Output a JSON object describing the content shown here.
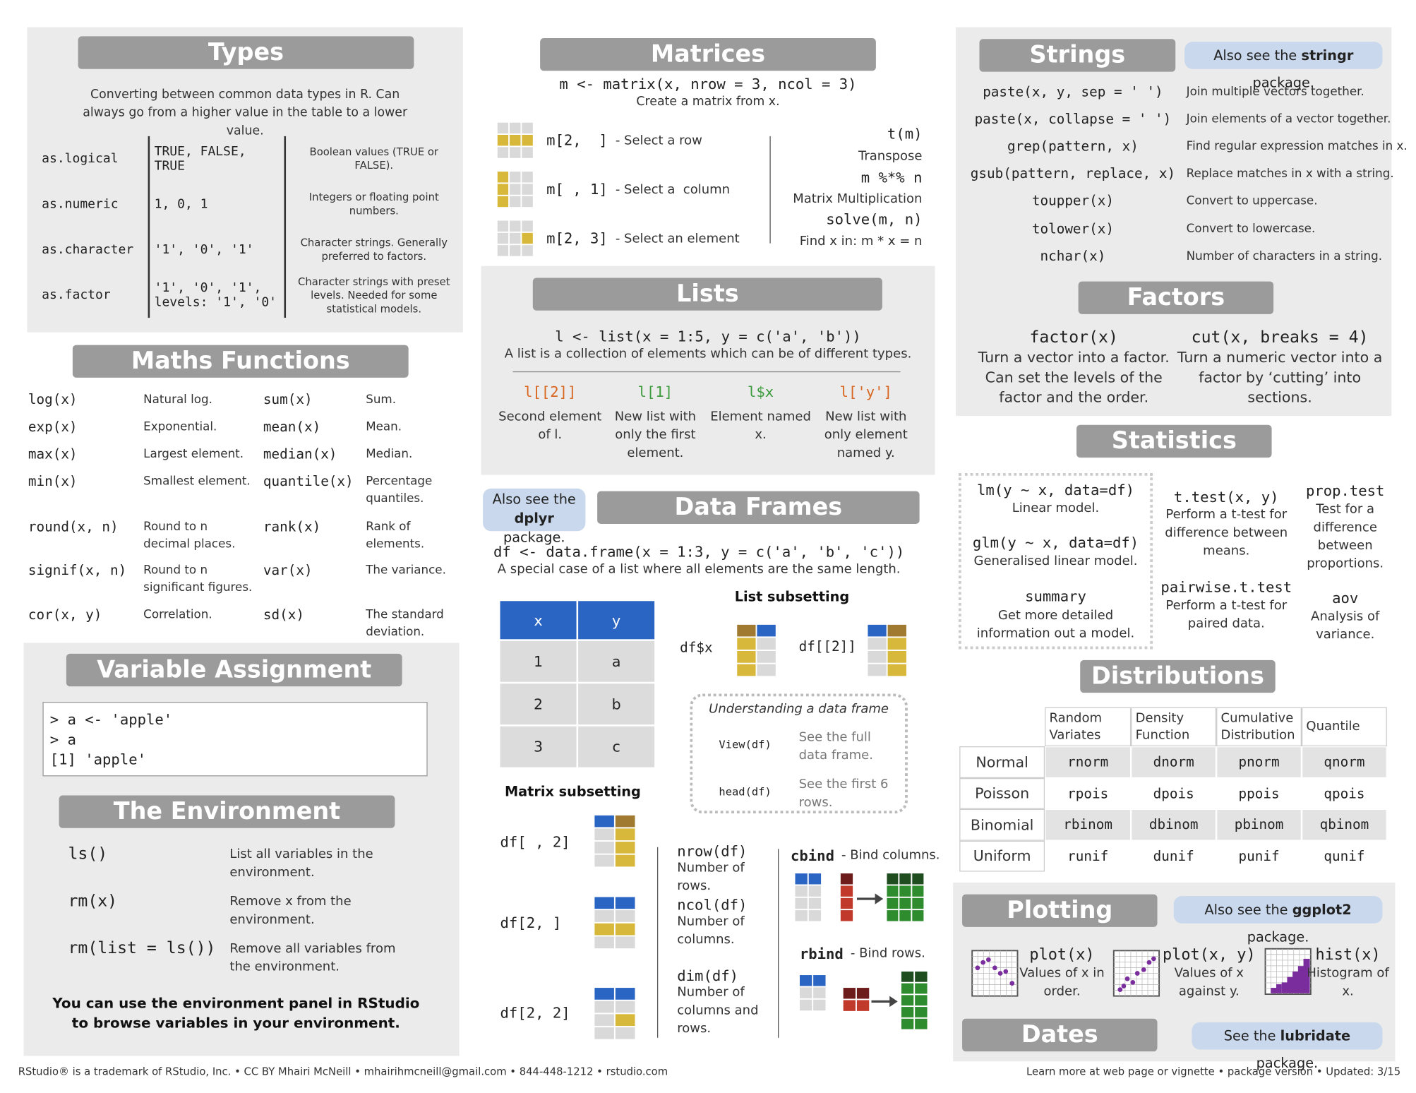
{
  "types": {
    "title": "Types",
    "description": "Converting between common data types in R. Can always go from a higher value in the table to a lower value.",
    "rows": [
      [
        "as.logical",
        "TRUE, FALSE, TRUE",
        "Boolean values (TRUE or FALSE)."
      ],
      [
        "as.numeric",
        "1, 0, 1",
        "Integers or floating point numbers."
      ],
      [
        "as.character",
        "'1', '0', '1'",
        "Character strings. Generally preferred to factors."
      ],
      [
        "as.factor",
        "'1', '0', '1', levels: '1', '0'",
        "Character strings with preset levels. Needed for some statistical models."
      ]
    ]
  },
  "maths": {
    "title": "Maths Functions",
    "left": [
      [
        "log(x)",
        "Natural log."
      ],
      [
        "exp(x)",
        "Exponential."
      ],
      [
        "max(x)",
        "Largest element."
      ],
      [
        "min(x)",
        "Smallest element."
      ],
      [
        "round(x, n)",
        "Round to n decimal places."
      ],
      [
        "signif(x, n)",
        "Round to n significant figures."
      ],
      [
        "cor(x, y)",
        "Correlation."
      ]
    ],
    "right": [
      [
        "sum(x)",
        "Sum."
      ],
      [
        "mean(x)",
        "Mean."
      ],
      [
        "median(x)",
        "Median."
      ],
      [
        "quantile(x)",
        "Percentage quantiles."
      ],
      [
        "rank(x)",
        "Rank of elements."
      ],
      [
        "var(x)",
        "The variance."
      ],
      [
        "sd(x)",
        "The standard deviation."
      ]
    ]
  },
  "assignment": {
    "title": "Variable Assignment",
    "console": [
      "> a <- 'apple'",
      "> a",
      "[1] 'apple'"
    ]
  },
  "environment": {
    "title": "The Environment",
    "items": [
      [
        "ls()",
        "List all variables in the environment."
      ],
      [
        "rm(x)",
        "Remove x from the environment."
      ],
      [
        "rm(list = ls())",
        "Remove all variables from the environment."
      ]
    ],
    "note": "You can use the environment panel in RStudio to browse variables in your environment."
  },
  "matrices": {
    "title": "Matrices",
    "code": "m <- matrix(x, nrow = 3, ncol = 3)",
    "description": "Create a matrix from x.",
    "subsetting": [
      [
        "m[2,  ]",
        "- Select a row"
      ],
      [
        "m[ , 1]",
        "- Select a  column"
      ],
      [
        "m[2, 3]",
        "- Select an element"
      ]
    ],
    "operations": [
      [
        "t(m)",
        "Transpose"
      ],
      [
        "m %*% n",
        "Matrix Multiplication"
      ],
      [
        "solve(m, n)",
        "Find x in: m * x = n"
      ]
    ]
  },
  "lists": {
    "title": "Lists",
    "code": "l <- list(x = 1:5, y = c('a', 'b'))",
    "description": "A list is a collection of elements which can be of different types.",
    "items": [
      [
        "l[[2]]",
        "Second element of l."
      ],
      [
        "l[1]",
        "New list with only the first element."
      ],
      [
        "l$x",
        "Element named x."
      ],
      [
        "l['y']",
        "New list with only element named y."
      ]
    ]
  },
  "data_frames": {
    "note": {
      "pre": "Also see the",
      "package": "dplyr",
      "post": "package."
    },
    "title": "Data Frames",
    "code": "df <- data.frame(x = 1:3, y = c('a', 'b', 'c'))",
    "description": "A special case of a list where all elements are the same length.",
    "table": {
      "header": [
        "x",
        "y"
      ],
      "rows": [
        [
          "1",
          "a"
        ],
        [
          "2",
          "b"
        ],
        [
          "3",
          "c"
        ]
      ]
    },
    "list_subsetting": {
      "title": "List subsetting",
      "items": [
        "df$x",
        "df[[2]]"
      ]
    },
    "understanding": {
      "title": "Understanding a data frame",
      "items": [
        [
          "View(df)",
          "See the full data frame."
        ],
        [
          "head(df)",
          "See the first 6 rows."
        ]
      ]
    },
    "matrix_subsetting": {
      "title": "Matrix subsetting",
      "items": [
        "df[ , 2]",
        "df[2, ]",
        "df[2, 2]"
      ]
    },
    "dimensions": [
      [
        "nrow(df)",
        "Number of rows."
      ],
      [
        "ncol(df)",
        "Number of columns."
      ],
      [
        "dim(df)",
        "Number of columns and rows."
      ]
    ],
    "binding": [
      [
        "cbind",
        "- Bind columns."
      ],
      [
        "rbind",
        "- Bind rows."
      ]
    ]
  },
  "strings": {
    "title": "Strings",
    "note": {
      "pre": "Also see the",
      "package": "stringr",
      "post": "package."
    },
    "items": [
      [
        "paste(x, y, sep = ' ')",
        "Join multiple vectors together."
      ],
      [
        "paste(x, collapse = ' ')",
        "Join elements of a vector together."
      ],
      [
        "grep(pattern, x)",
        "Find regular expression matches in x."
      ],
      [
        "gsub(pattern, replace, x)",
        "Replace matches in x with a string."
      ],
      [
        "toupper(x)",
        "Convert to uppercase."
      ],
      [
        "tolower(x)",
        "Convert to lowercase."
      ],
      [
        "nchar(x)",
        "Number of characters in a string."
      ]
    ]
  },
  "factors": {
    "title": "Factors",
    "items": [
      [
        "factor(x)",
        "Turn a vector into a factor. Can set the levels of the factor and the order."
      ],
      [
        "cut(x, breaks = 4)",
        "Turn a numeric vector into a factor by ‘cutting’ into sections."
      ]
    ]
  },
  "statistics": {
    "title": "Statistics",
    "items": [
      [
        "lm(y ~ x, data=df)",
        "Linear model."
      ],
      [
        "glm(y ~ x, data=df)",
        "Generalised linear model."
      ],
      [
        "summary",
        "Get more detailed information out a model."
      ],
      [
        "t.test(x, y)",
        "Perform a t-test for difference between means."
      ],
      [
        "pairwise.t.test",
        "Perform a t-test for paired data."
      ],
      [
        "prop.test",
        "Test for a difference between proportions."
      ],
      [
        "aov",
        "Analysis of variance."
      ]
    ]
  },
  "distributions": {
    "title": "Distributions",
    "header": [
      "Random Variates",
      "Density Function",
      "Cumulative Distribution",
      "Quantile"
    ],
    "rows": [
      [
        "Normal",
        "rnorm",
        "dnorm",
        "pnorm",
        "qnorm"
      ],
      [
        "Poisson",
        "rpois",
        "dpois",
        "ppois",
        "qpois"
      ],
      [
        "Binomial",
        "rbinom",
        "dbinom",
        "pbinom",
        "qbinom"
      ],
      [
        "Uniform",
        "runif",
        "dunif",
        "punif",
        "qunif"
      ]
    ]
  },
  "plotting": {
    "title": "Plotting",
    "note": {
      "pre": "Also see the",
      "package": "ggplot2",
      "post": "package."
    },
    "items": [
      [
        "plot(x)",
        "Values of x in order."
      ],
      [
        "plot(x, y)",
        "Values of x against y."
      ],
      [
        "hist(x)",
        "Histogram of x."
      ]
    ]
  },
  "dates": {
    "title": "Dates",
    "note": {
      "pre": "See the",
      "package": "lubridate",
      "post": "package."
    }
  },
  "footer": {
    "left": "RStudio® is a trademark of RStudio, Inc. • CC BY Mhairi McNeill • mhairihmcneill@gmail.com • 844-448-1212 • rstudio.com",
    "right": "Learn more at web page or vignette • package version • Updated: 3/15"
  }
}
